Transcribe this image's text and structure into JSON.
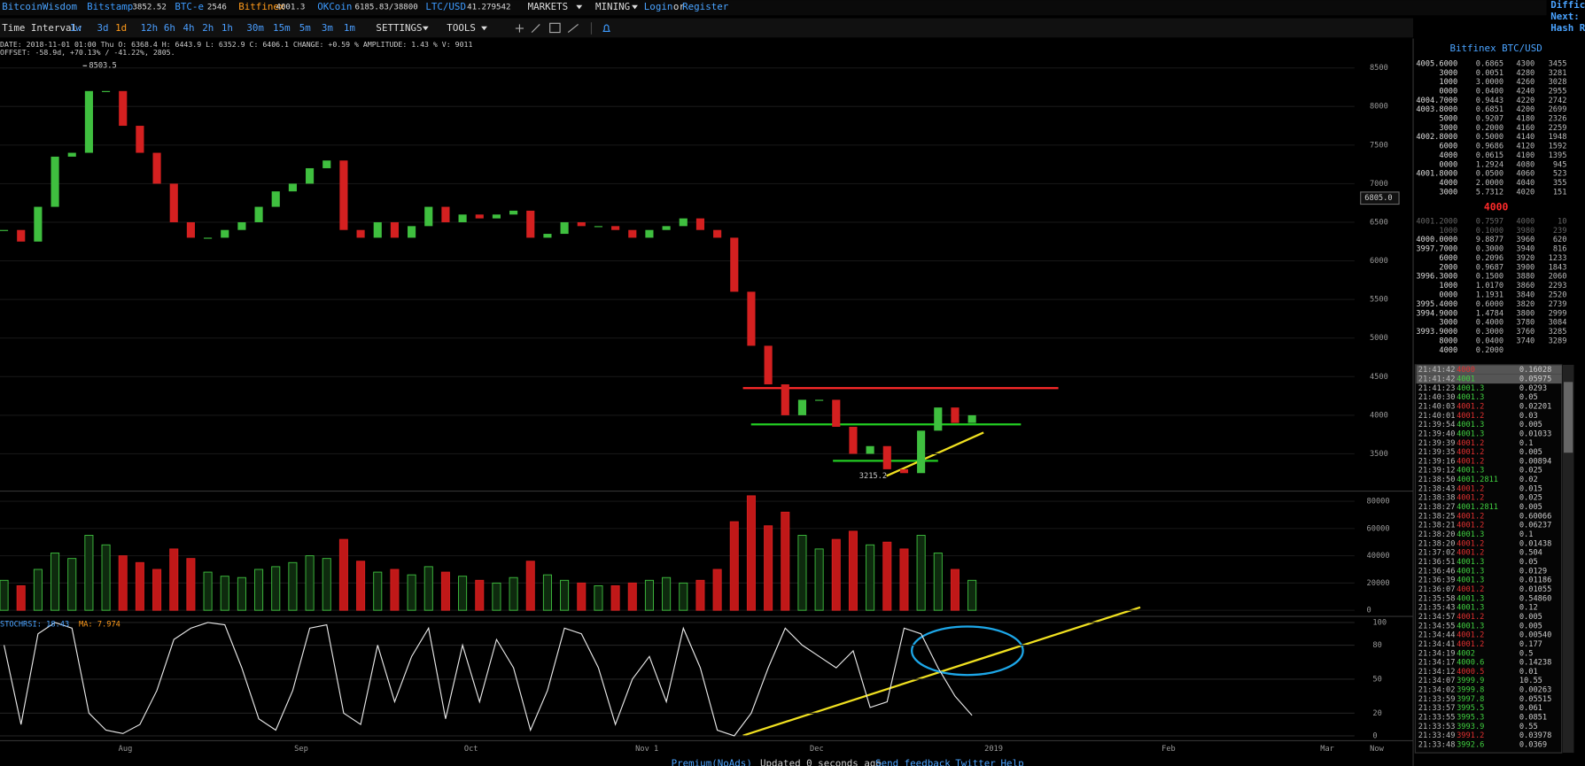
{
  "nav": {
    "brand": "BitcoinWisdom",
    "tickers": [
      {
        "name": "Bitstamp",
        "price": "3852.52",
        "color": "#3d9bff"
      },
      {
        "name": "BTC-e",
        "price": "2546",
        "color": "#3d9bff"
      },
      {
        "name": "Bitfinex",
        "price": "4001.3",
        "color": "#ff9a1a"
      },
      {
        "name": "OKCoin",
        "price": "6185.83/38800",
        "color": "#3d9bff"
      },
      {
        "name": "LTC/USD",
        "price": "41.279542",
        "color": "#3d9bff"
      }
    ],
    "markets": "MARKETS",
    "mining": "MINING",
    "login": "Login",
    "or": "or",
    "register": "Register",
    "side": [
      "Difficu",
      "Next:",
      "Hash Ra"
    ]
  },
  "toolbar": {
    "label": "Time Interval:",
    "intervals": [
      {
        "label": "1w",
        "active": false
      },
      {
        "label": "3d",
        "active": false
      },
      {
        "label": "1d",
        "active": true
      },
      {
        "label": "12h",
        "active": false
      },
      {
        "label": "6h",
        "active": false
      },
      {
        "label": "4h",
        "active": false
      },
      {
        "label": "2h",
        "active": false
      },
      {
        "label": "1h",
        "active": false
      },
      {
        "label": "30m",
        "active": false
      },
      {
        "label": "15m",
        "active": false
      },
      {
        "label": "5m",
        "active": false
      },
      {
        "label": "3m",
        "active": false
      },
      {
        "label": "1m",
        "active": false
      }
    ],
    "settings": "SETTINGS",
    "tools": "TOOLS"
  },
  "info": {
    "line1": "DATE: 2018-11-01 01:00 Thu   O: 6368.4   H: 6443.9   L: 6352.9   C: 6406.1   CHANGE: +0.59 %   AMPLITUDE: 1.43 %   V: 9011",
    "line2": "OFFSET: -58.9d, +70.13% / -41.22%, 2805."
  },
  "price_chart": {
    "closes": [
      6400,
      6250,
      6700,
      7350,
      7400,
      8200,
      8200,
      7750,
      7400,
      7000,
      6500,
      6300,
      6300,
      6400,
      6500,
      6700,
      6900,
      7000,
      7200,
      7300,
      6400,
      6300,
      6500,
      6300,
      6450,
      6700,
      6500,
      6600,
      6550,
      6600,
      6650,
      6300,
      6350,
      6500,
      6450,
      6450,
      6400,
      6300,
      6400,
      6450,
      6550,
      6400,
      6300,
      5600,
      4900,
      4400,
      4000,
      4200,
      4200,
      3850,
      3500,
      3600,
      3300,
      3250,
      3800,
      4100,
      3900,
      4000
    ],
    "ylim": [
      3030,
      8855
    ],
    "yticks": [
      8500,
      8000,
      7500,
      7000,
      6500,
      6000,
      5500,
      5000,
      4500,
      4000,
      3500
    ],
    "up_color": "#3fbf3f",
    "down_color": "#d42020",
    "high_label": "8503.5",
    "low_label": "3215.2",
    "last_price": "6805.0"
  },
  "volume_chart": {
    "values": [
      22000,
      18000,
      30000,
      42000,
      38000,
      55000,
      48000,
      40000,
      35000,
      30000,
      45000,
      38000,
      28000,
      25000,
      24000,
      30000,
      32000,
      35000,
      40000,
      38000,
      52000,
      36000,
      28000,
      30000,
      26000,
      32000,
      28000,
      25000,
      22000,
      20000,
      24000,
      36000,
      26000,
      22000,
      20000,
      18000,
      18000,
      20000,
      22000,
      24000,
      20000,
      22000,
      30000,
      65000,
      84000,
      62000,
      72000,
      55000,
      45000,
      52000,
      58000,
      48000,
      50000,
      45000,
      55000,
      42000,
      30000,
      22000
    ],
    "ylim": [
      -3000,
      86700
    ],
    "yticks": [
      80000,
      60000,
      40000,
      20000,
      0
    ]
  },
  "stoch_chart": {
    "label": "STOCHRSI: 18.43",
    "ma_label": "MA: 7.974",
    "values": [
      80,
      10,
      90,
      100,
      95,
      20,
      5,
      2,
      10,
      40,
      85,
      95,
      100,
      98,
      60,
      15,
      5,
      40,
      95,
      98,
      20,
      10,
      80,
      30,
      70,
      95,
      15,
      80,
      30,
      85,
      60,
      5,
      40,
      95,
      90,
      60,
      10,
      50,
      70,
      30,
      95,
      60,
      5,
      0,
      20,
      60,
      95,
      80,
      70,
      60,
      75,
      25,
      30,
      95,
      90,
      60,
      35,
      18
    ],
    "ylim": [
      -15,
      103.6
    ],
    "yticks": [
      100,
      80,
      50,
      20,
      0
    ],
    "color": "#e8e8e8"
  },
  "x_axis": [
    "Aug",
    "Sep",
    "Oct",
    "Nov 1",
    "Dec",
    "2019",
    "Feb",
    "Mar",
    "Now"
  ],
  "footer": [
    "Premium(NoAds)",
    "Updated 0 seconds ago",
    "Send feedback",
    "Twitter",
    "Help"
  ],
  "order_book": {
    "title": "Bitfinex BTC/USD",
    "asks": [
      [
        "4005.6000",
        "0.6865",
        "4300",
        "3455"
      ],
      [
        "3000",
        "0.0051",
        "4280",
        "3281"
      ],
      [
        "1000",
        "3.0000",
        "4260",
        "3028"
      ],
      [
        "0000",
        "0.0400",
        "4240",
        "2955"
      ],
      [
        "4004.7000",
        "0.9443",
        "4220",
        "2742"
      ],
      [
        "4003.8000",
        "0.6851",
        "4200",
        "2699"
      ],
      [
        "5000",
        "0.9207",
        "4180",
        "2326"
      ],
      [
        "3000",
        "0.2000",
        "4160",
        "2259"
      ],
      [
        "4002.8000",
        "0.5000",
        "4140",
        "1948"
      ],
      [
        "6000",
        "0.9686",
        "4120",
        "1592"
      ],
      [
        "4000",
        "0.0615",
        "4100",
        "1395"
      ],
      [
        "0000",
        "1.2924",
        "4080",
        "945"
      ],
      [
        "4001.8000",
        "0.0500",
        "4060",
        "523"
      ],
      [
        "4000",
        "2.0000",
        "4040",
        "355"
      ],
      [
        "3000",
        "5.7312",
        "4020",
        "151"
      ]
    ],
    "mid": "4000",
    "bids": [
      [
        "4001.2000",
        "0.7597",
        "4000",
        "10"
      ],
      [
        "1000",
        "0.1000",
        "3980",
        "239"
      ],
      [
        "4000.0000",
        "9.8877",
        "3960",
        "620"
      ],
      [
        "3997.7000",
        "0.3000",
        "3940",
        "816"
      ],
      [
        "6000",
        "0.2096",
        "3920",
        "1233"
      ],
      [
        "2000",
        "0.9687",
        "3900",
        "1843"
      ],
      [
        "3996.3000",
        "0.1500",
        "3880",
        "2060"
      ],
      [
        "1000",
        "1.0170",
        "3860",
        "2293"
      ],
      [
        "0000",
        "1.1931",
        "3840",
        "2520"
      ],
      [
        "3995.4000",
        "0.6000",
        "3820",
        "2739"
      ],
      [
        "3994.9000",
        "1.4784",
        "3800",
        "2999"
      ],
      [
        "3000",
        "0.4000",
        "3780",
        "3084"
      ],
      [
        "3993.9000",
        "0.3000",
        "3760",
        "3285"
      ],
      [
        "8000",
        "0.0400",
        "3740",
        "3289"
      ],
      [
        "4000",
        "0.2000"
      ]
    ]
  },
  "trades": [
    {
      "time": "21:41:42",
      "price": "4000",
      "amount": "0.16028",
      "color": "#e03030"
    },
    {
      "time": "21:41:42",
      "price": "4001",
      "amount": "0.05975",
      "color": "#40d040"
    },
    {
      "time": "21:41:23",
      "price": "4001.3",
      "amount": "0.0293",
      "color": "#40d040"
    },
    {
      "time": "21:40:30",
      "price": "4001.3",
      "amount": "0.05",
      "color": "#40d040"
    },
    {
      "time": "21:40:03",
      "price": "4001.2",
      "amount": "0.02201",
      "color": "#e03030"
    },
    {
      "time": "21:40:01",
      "price": "4001.2",
      "amount": "0.03",
      "color": "#e03030"
    },
    {
      "time": "21:39:54",
      "price": "4001.3",
      "amount": "0.005",
      "color": "#40d040"
    },
    {
      "time": "21:39:40",
      "price": "4001.3",
      "amount": "0.01033",
      "color": "#40d040"
    },
    {
      "time": "21:39:39",
      "price": "4001.2",
      "amount": "0.1",
      "color": "#e03030"
    },
    {
      "time": "21:39:35",
      "price": "4001.2",
      "amount": "0.005",
      "color": "#e03030"
    },
    {
      "time": "21:39:16",
      "price": "4001.2",
      "amount": "0.00894",
      "color": "#e03030"
    },
    {
      "time": "21:39:12",
      "price": "4001.3",
      "amount": "0.025",
      "color": "#40d040"
    },
    {
      "time": "21:38:50",
      "price": "4001.2811",
      "amount": "0.02",
      "color": "#40d040"
    },
    {
      "time": "21:38:43",
      "price": "4001.2",
      "amount": "0.015",
      "color": "#e03030"
    },
    {
      "time": "21:38:38",
      "price": "4001.2",
      "amount": "0.025",
      "color": "#e03030"
    },
    {
      "time": "21:38:27",
      "price": "4001.2811",
      "amount": "0.005",
      "color": "#40d040"
    },
    {
      "time": "21:38:25",
      "price": "4001.2",
      "amount": "0.60066",
      "color": "#e03030"
    },
    {
      "time": "21:38:21",
      "price": "4001.2",
      "amount": "0.06237",
      "color": "#e03030"
    },
    {
      "time": "21:38:20",
      "price": "4001.3",
      "amount": "0.1",
      "color": "#40d040"
    },
    {
      "time": "21:38:20",
      "price": "4001.2",
      "amount": "0.01438",
      "color": "#e03030"
    },
    {
      "time": "21:37:02",
      "price": "4001.2",
      "amount": "0.504",
      "color": "#e03030"
    },
    {
      "time": "21:36:51",
      "price": "4001.3",
      "amount": "0.05",
      "color": "#40d040"
    },
    {
      "time": "21:36:46",
      "price": "4001.3",
      "amount": "0.0129",
      "color": "#40d040"
    },
    {
      "time": "21:36:39",
      "price": "4001.3",
      "amount": "0.01186",
      "color": "#40d040"
    },
    {
      "time": "21:36:07",
      "price": "4001.2",
      "amount": "0.01055",
      "color": "#e03030"
    },
    {
      "time": "21:35:58",
      "price": "4001.3",
      "amount": "0.54860",
      "color": "#40d040"
    },
    {
      "time": "21:35:43",
      "price": "4001.3",
      "amount": "0.12",
      "color": "#40d040"
    },
    {
      "time": "21:34:57",
      "price": "4001.2",
      "amount": "0.005",
      "color": "#e03030"
    },
    {
      "time": "21:34:55",
      "price": "4001.3",
      "amount": "0.005",
      "color": "#40d040"
    },
    {
      "time": "21:34:44",
      "price": "4001.2",
      "amount": "0.00540",
      "color": "#e03030"
    },
    {
      "time": "21:34:41",
      "price": "4001.2",
      "amount": "0.177",
      "color": "#e03030"
    },
    {
      "time": "21:34:19",
      "price": "4002",
      "amount": "0.5",
      "color": "#40d040"
    },
    {
      "time": "21:34:17",
      "price": "4000.6",
      "amount": "0.14238",
      "color": "#40d040"
    },
    {
      "time": "21:34:12",
      "price": "4000.5",
      "amount": "0.01",
      "color": "#e03030"
    },
    {
      "time": "21:34:07",
      "price": "3999.9",
      "amount": "10.55",
      "color": "#40d040"
    },
    {
      "time": "21:34:02",
      "price": "3999.8",
      "amount": "0.00263",
      "color": "#40d040"
    },
    {
      "time": "21:33:59",
      "price": "3997.8",
      "amount": "0.05515",
      "color": "#40d040"
    },
    {
      "time": "21:33:57",
      "price": "3995.5",
      "amount": "0.061",
      "color": "#40d040"
    },
    {
      "time": "21:33:55",
      "price": "3995.3",
      "amount": "0.0851",
      "color": "#40d040"
    },
    {
      "time": "21:33:53",
      "price": "3993.9",
      "amount": "0.55",
      "color": "#40d040"
    },
    {
      "time": "21:33:49",
      "price": "3991.2",
      "amount": "0.03978",
      "color": "#e03030"
    },
    {
      "time": "21:33:48",
      "price": "3992.6",
      "amount": "0.0369",
      "color": "#40d040"
    }
  ]
}
